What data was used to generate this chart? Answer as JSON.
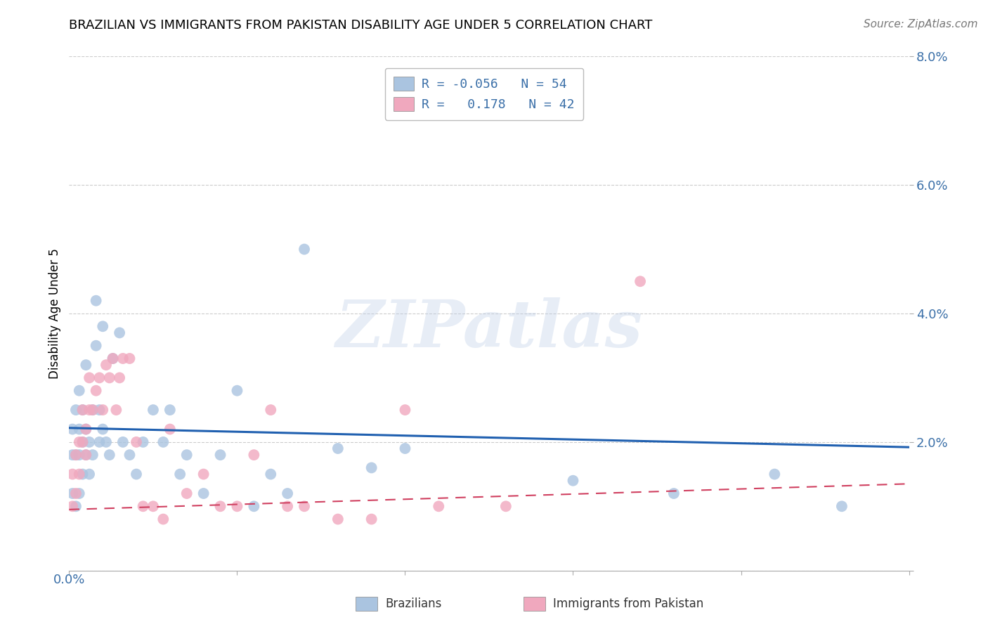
{
  "title": "BRAZILIAN VS IMMIGRANTS FROM PAKISTAN DISABILITY AGE UNDER 5 CORRELATION CHART",
  "source": "Source: ZipAtlas.com",
  "ylabel": "Disability Age Under 5",
  "xlim": [
    0.0,
    0.25
  ],
  "ylim": [
    0.0,
    0.08
  ],
  "yticks": [
    0.0,
    0.02,
    0.04,
    0.06,
    0.08
  ],
  "ytick_labels": [
    "",
    "2.0%",
    "4.0%",
    "6.0%",
    "8.0%"
  ],
  "watermark": "ZIPatlas",
  "brazilian_color": "#aac4e0",
  "pakistan_color": "#f0a8be",
  "brazilian_line_color": "#2060b0",
  "pakistan_line_color": "#d04060",
  "brazil_intercept": 0.0222,
  "brazil_slope": -0.012,
  "pakistan_intercept": 0.0095,
  "pakistan_slope": 0.016,
  "brazilians_x": [
    0.001,
    0.001,
    0.001,
    0.002,
    0.002,
    0.002,
    0.003,
    0.003,
    0.003,
    0.003,
    0.004,
    0.004,
    0.004,
    0.005,
    0.005,
    0.005,
    0.006,
    0.006,
    0.007,
    0.007,
    0.008,
    0.008,
    0.009,
    0.009,
    0.01,
    0.01,
    0.011,
    0.012,
    0.013,
    0.015,
    0.016,
    0.018,
    0.02,
    0.022,
    0.025,
    0.028,
    0.03,
    0.033,
    0.035,
    0.04,
    0.045,
    0.05,
    0.055,
    0.06,
    0.065,
    0.07,
    0.08,
    0.09,
    0.1,
    0.12,
    0.15,
    0.18,
    0.21,
    0.23
  ],
  "brazilians_y": [
    0.012,
    0.018,
    0.022,
    0.01,
    0.018,
    0.025,
    0.012,
    0.018,
    0.022,
    0.028,
    0.015,
    0.02,
    0.025,
    0.018,
    0.022,
    0.032,
    0.015,
    0.02,
    0.018,
    0.025,
    0.035,
    0.042,
    0.02,
    0.025,
    0.038,
    0.022,
    0.02,
    0.018,
    0.033,
    0.037,
    0.02,
    0.018,
    0.015,
    0.02,
    0.025,
    0.02,
    0.025,
    0.015,
    0.018,
    0.012,
    0.018,
    0.028,
    0.01,
    0.015,
    0.012,
    0.05,
    0.019,
    0.016,
    0.019,
    0.071,
    0.014,
    0.012,
    0.015,
    0.01
  ],
  "pakistan_x": [
    0.001,
    0.001,
    0.002,
    0.002,
    0.003,
    0.003,
    0.004,
    0.004,
    0.005,
    0.005,
    0.006,
    0.006,
    0.007,
    0.008,
    0.009,
    0.01,
    0.011,
    0.012,
    0.013,
    0.014,
    0.015,
    0.016,
    0.018,
    0.02,
    0.022,
    0.025,
    0.028,
    0.03,
    0.035,
    0.04,
    0.045,
    0.05,
    0.055,
    0.06,
    0.065,
    0.07,
    0.08,
    0.09,
    0.1,
    0.11,
    0.13,
    0.17
  ],
  "pakistan_y": [
    0.01,
    0.015,
    0.012,
    0.018,
    0.015,
    0.02,
    0.02,
    0.025,
    0.018,
    0.022,
    0.025,
    0.03,
    0.025,
    0.028,
    0.03,
    0.025,
    0.032,
    0.03,
    0.033,
    0.025,
    0.03,
    0.033,
    0.033,
    0.02,
    0.01,
    0.01,
    0.008,
    0.022,
    0.012,
    0.015,
    0.01,
    0.01,
    0.018,
    0.025,
    0.01,
    0.01,
    0.008,
    0.008,
    0.025,
    0.01,
    0.01,
    0.045
  ],
  "legend_label1": "R = -0.056   N = 54",
  "legend_label2": "R =   0.178   N = 42",
  "bottom_label1": "Brazilians",
  "bottom_label2": "Immigrants from Pakistan",
  "grid_color": "#cccccc",
  "axis_color": "#aaaaaa",
  "tick_color": "#3a6fa8",
  "title_fontsize": 13,
  "source_fontsize": 11,
  "ytick_fontsize": 13,
  "legend_fontsize": 13,
  "ylabel_fontsize": 12
}
